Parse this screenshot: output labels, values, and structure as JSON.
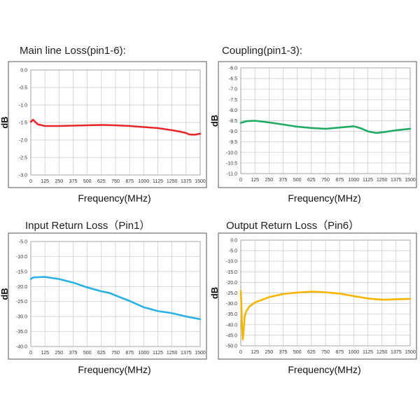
{
  "chart_data": [
    {
      "type": "line",
      "title": "Main line Loss(pin1-6):",
      "xlabel": "Frequency(MHz)",
      "ylabel": "dB",
      "xlim": [
        0,
        1500
      ],
      "ylim": [
        -3.0,
        0.0
      ],
      "x_ticks": [
        "0",
        "125",
        "250",
        "375",
        "500",
        "625",
        "750",
        "875",
        "1000",
        "1125",
        "1250",
        "1375",
        "1500"
      ],
      "y_ticks": [
        "0.0",
        "-0.5",
        "-1.0",
        "-1.5",
        "-2.0",
        "-2.5",
        "-3.0"
      ],
      "grid": true,
      "color": "#e8262a",
      "series": [
        {
          "x": [
            0,
            20,
            60,
            125,
            250,
            375,
            500,
            625,
            750,
            875,
            1000,
            1125,
            1250,
            1320,
            1375,
            1400,
            1450,
            1500
          ],
          "y": [
            -1.48,
            -1.42,
            -1.55,
            -1.6,
            -1.6,
            -1.59,
            -1.58,
            -1.57,
            -1.58,
            -1.6,
            -1.63,
            -1.66,
            -1.72,
            -1.76,
            -1.8,
            -1.84,
            -1.85,
            -1.82
          ]
        }
      ]
    },
    {
      "type": "line",
      "title": "Coupling(pin1-3):",
      "xlabel": "Frequency(MHz)",
      "ylabel": "dB",
      "xlim": [
        0,
        1500
      ],
      "ylim": [
        -11.0,
        -6.0
      ],
      "x_ticks": [
        "0",
        "125",
        "250",
        "375",
        "500",
        "625",
        "750",
        "875",
        "1000",
        "1125",
        "1250",
        "1375",
        "1500"
      ],
      "y_ticks": [
        "-6.0",
        "-6.5",
        "-7.0",
        "-7.5",
        "-8.0",
        "-8.5",
        "-9.0",
        "-9.5",
        "-10.0",
        "-10.5",
        "-11.0"
      ],
      "grid": true,
      "color": "#1faa63",
      "series": [
        {
          "x": [
            0,
            50,
            125,
            250,
            375,
            500,
            625,
            750,
            875,
            1000,
            1060,
            1125,
            1200,
            1250,
            1375,
            1500
          ],
          "y": [
            -8.6,
            -8.52,
            -8.5,
            -8.58,
            -8.68,
            -8.78,
            -8.84,
            -8.88,
            -8.82,
            -8.76,
            -8.85,
            -9.0,
            -9.08,
            -9.05,
            -8.95,
            -8.88
          ]
        }
      ]
    },
    {
      "type": "line",
      "title": "Input Return Loss（Pin1）",
      "xlabel": "Frequency(MHz)",
      "ylabel": "dB",
      "xlim": [
        0,
        1500
      ],
      "ylim": [
        -40.0,
        -5.0
      ],
      "x_ticks": [
        "0",
        "125",
        "250",
        "375",
        "500",
        "625",
        "750",
        "875",
        "1000",
        "1125",
        "1250",
        "1375",
        "1500"
      ],
      "y_ticks": [
        "-5.0",
        "-10.0",
        "-15.0",
        "-20.0",
        "-25.0",
        "-30.0",
        "-35.0",
        "-40.0"
      ],
      "grid": true,
      "color": "#29b1e6",
      "series": [
        {
          "x": [
            0,
            20,
            60,
            125,
            250,
            375,
            500,
            625,
            700,
            750,
            875,
            1000,
            1125,
            1250,
            1375,
            1500
          ],
          "y": [
            -17.5,
            -17.0,
            -16.9,
            -16.8,
            -17.5,
            -18.7,
            -20.3,
            -21.6,
            -22.2,
            -23.0,
            -24.8,
            -26.9,
            -28.2,
            -28.9,
            -30.0,
            -30.9
          ]
        }
      ]
    },
    {
      "type": "line",
      "title": "Output Return Loss（Pin6）",
      "xlabel": "Frequency(MHz)",
      "ylabel": "dB",
      "xlim": [
        0,
        1500
      ],
      "ylim": [
        -50.0,
        0.0
      ],
      "x_ticks": [
        "0",
        "125",
        "250",
        "375",
        "500",
        "625",
        "750",
        "875",
        "1000",
        "1125",
        "1250",
        "1375",
        "1500"
      ],
      "y_ticks": [
        "0.0",
        "-5.0",
        "-10.0",
        "-15.0",
        "-20.0",
        "-25.0",
        "-30.0",
        "-35.0",
        "-40.0",
        "-45.0",
        "-50.0"
      ],
      "grid": true,
      "color": "#f7b500",
      "series": [
        {
          "x": [
            0,
            5,
            10,
            18,
            25,
            35,
            50,
            75,
            100,
            125,
            175,
            250,
            375,
            500,
            625,
            700,
            750,
            875,
            1000,
            1125,
            1250,
            1375,
            1500
          ],
          "y": [
            -24.0,
            -30.0,
            -40.0,
            -47.0,
            -43.0,
            -36.0,
            -33.5,
            -31.5,
            -30.5,
            -29.5,
            -28.5,
            -27.0,
            -25.5,
            -24.8,
            -24.4,
            -24.5,
            -24.7,
            -25.3,
            -26.5,
            -27.6,
            -28.2,
            -28.0,
            -27.8
          ]
        }
      ]
    }
  ]
}
